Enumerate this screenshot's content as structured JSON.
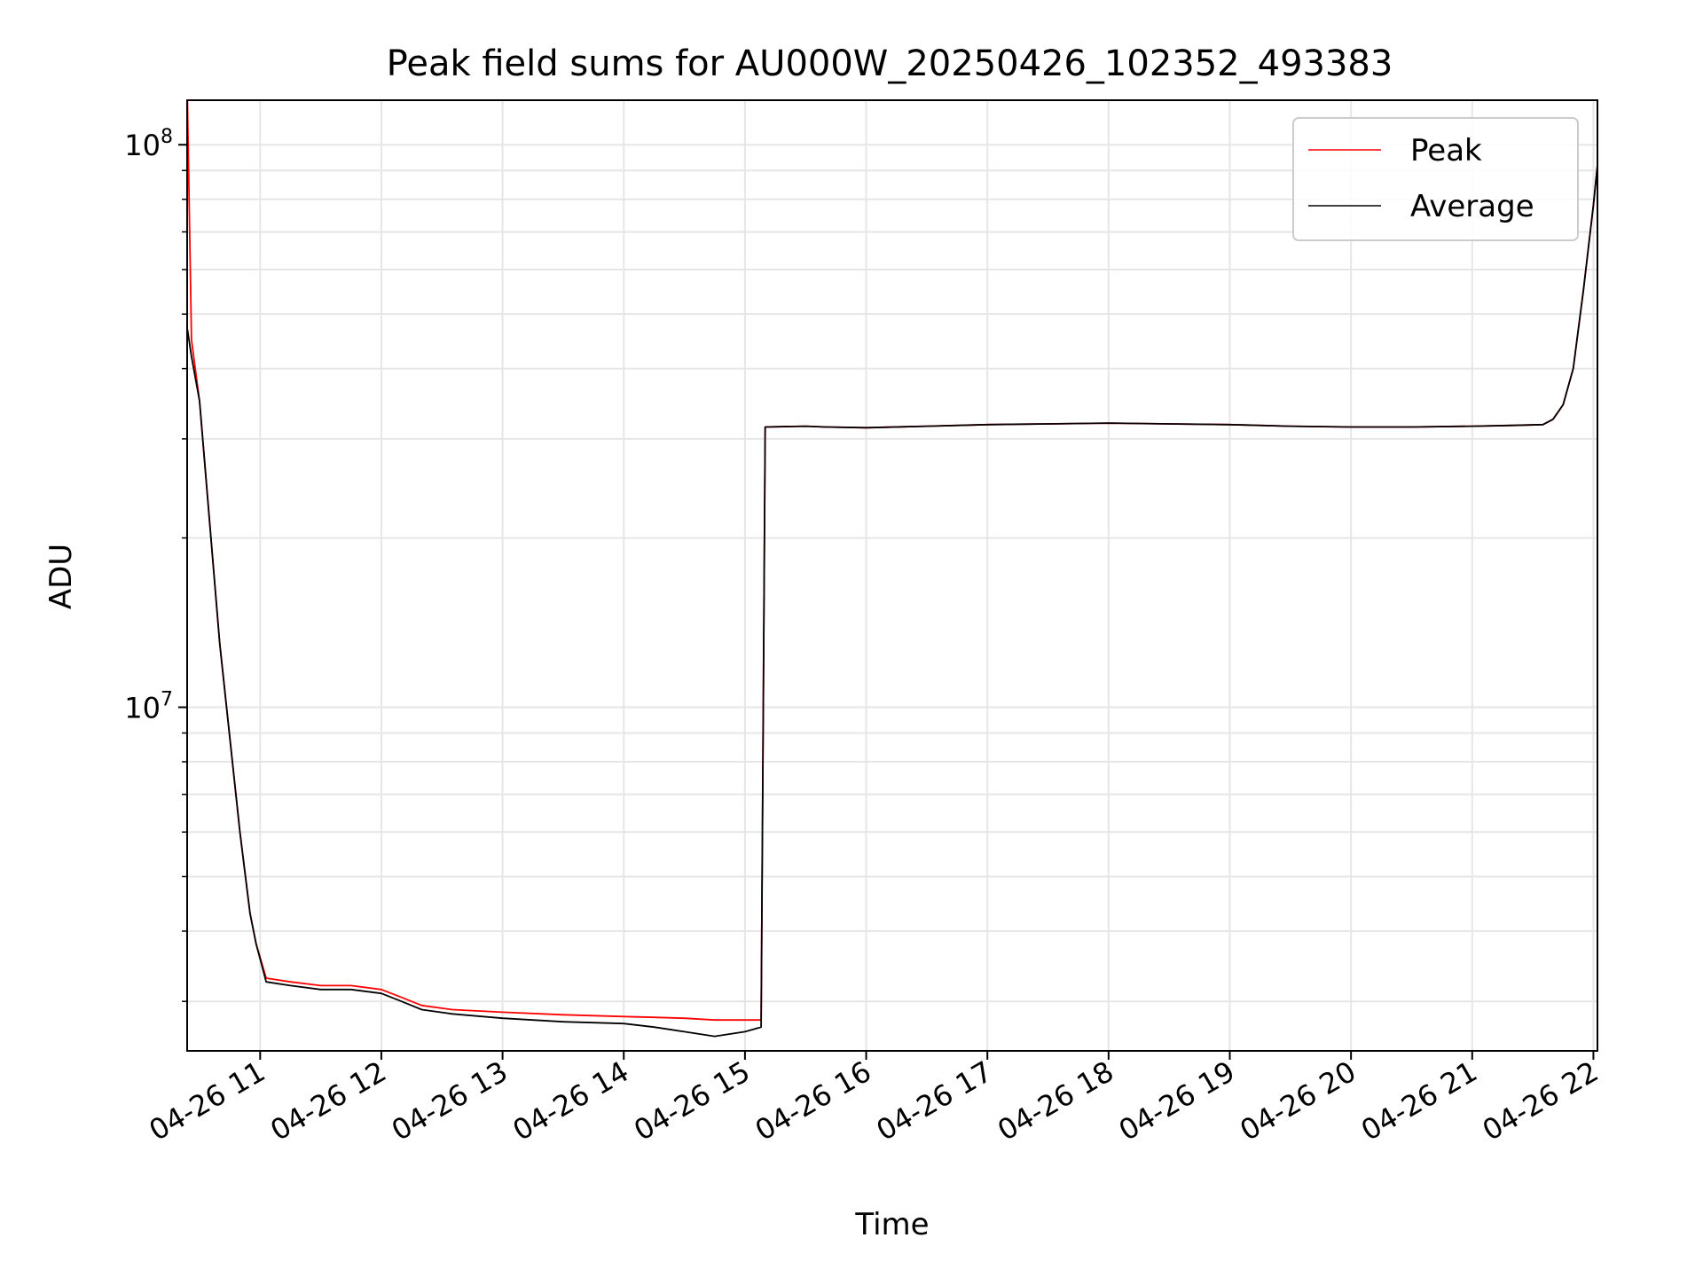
{
  "chart_data": {
    "type": "line",
    "title": "Peak field sums for AU000W_20250426_102352_493383",
    "xlabel": "Time",
    "ylabel": "ADU",
    "y_scale": "log",
    "xlim": [
      "2025-04-26 10:23:52",
      "2025-04-26 22:02:00"
    ],
    "ylim": [
      2450000,
      120000000
    ],
    "grid": true,
    "legend_position": "top-right",
    "x_ticks": [
      "04-26 11",
      "04-26 12",
      "04-26 13",
      "04-26 14",
      "04-26 15",
      "04-26 16",
      "04-26 17",
      "04-26 18",
      "04-26 19",
      "04-26 20",
      "04-26 21",
      "04-26 22"
    ],
    "y_ticks": [
      {
        "value": 10000000,
        "base": "10",
        "exp": "7"
      },
      {
        "value": 100000000,
        "base": "10",
        "exp": "8"
      }
    ],
    "x": [
      "10:24",
      "10:26",
      "10:30",
      "10:40",
      "10:50",
      "10:55",
      "10:58",
      "11:03",
      "11:15",
      "11:30",
      "11:45",
      "12:00",
      "12:10",
      "12:20",
      "12:35",
      "13:00",
      "13:30",
      "14:00",
      "14:15",
      "14:30",
      "14:45",
      "15:00",
      "15:08",
      "15:10",
      "15:30",
      "15:40",
      "16:00",
      "16:30",
      "17:00",
      "17:30",
      "18:00",
      "18:30",
      "19:00",
      "19:30",
      "20:00",
      "20:30",
      "21:00",
      "21:20",
      "21:35",
      "21:40",
      "21:45",
      "21:50",
      "21:55",
      "22:00",
      "22:02"
    ],
    "series": [
      {
        "name": "Peak",
        "color": "#ff0000",
        "values": [
          120000000,
          45000000,
          35000000,
          13000000,
          6000000,
          4300000,
          3800000,
          3300000,
          3250000,
          3200000,
          3200000,
          3150000,
          3050000,
          2950000,
          2900000,
          2870000,
          2840000,
          2820000,
          2810000,
          2800000,
          2780000,
          2780000,
          2780000,
          31500000,
          31600000,
          31500000,
          31400000,
          31600000,
          31800000,
          31900000,
          32000000,
          31900000,
          31800000,
          31600000,
          31500000,
          31500000,
          31600000,
          31700000,
          31800000,
          32500000,
          34500000,
          40000000,
          55000000,
          78000000,
          92000000
        ]
      },
      {
        "name": "Average",
        "color": "#000000",
        "values": [
          47000000,
          42000000,
          35000000,
          13000000,
          6000000,
          4300000,
          3800000,
          3250000,
          3200000,
          3150000,
          3150000,
          3100000,
          3000000,
          2900000,
          2850000,
          2800000,
          2760000,
          2740000,
          2700000,
          2650000,
          2600000,
          2650000,
          2700000,
          31500000,
          31600000,
          31500000,
          31400000,
          31600000,
          31800000,
          31900000,
          32000000,
          31900000,
          31800000,
          31600000,
          31500000,
          31500000,
          31600000,
          31700000,
          31800000,
          32500000,
          34500000,
          40000000,
          55000000,
          78000000,
          92000000
        ]
      }
    ]
  }
}
